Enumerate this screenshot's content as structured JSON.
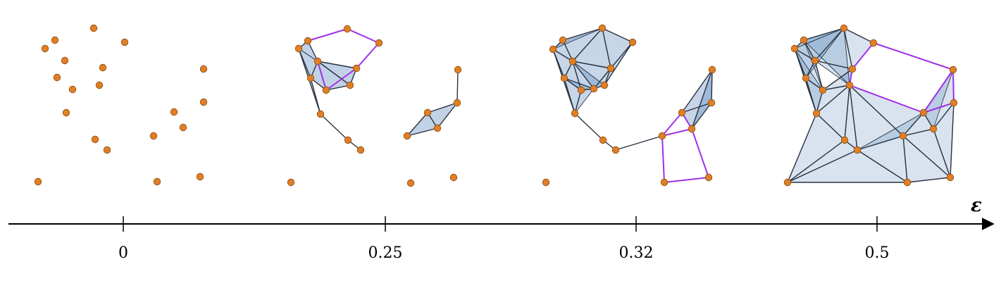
{
  "axis": {
    "label": "ε",
    "ticks": [
      "0",
      "0.25",
      "0.32",
      "0.5"
    ]
  },
  "colors": {
    "point": "#e07f25",
    "point_stroke": "#8a4a10",
    "simplex_fill": "#4f7fb8",
    "edge": "#2a3340",
    "cycle_edge": "#a030e8"
  }
}
